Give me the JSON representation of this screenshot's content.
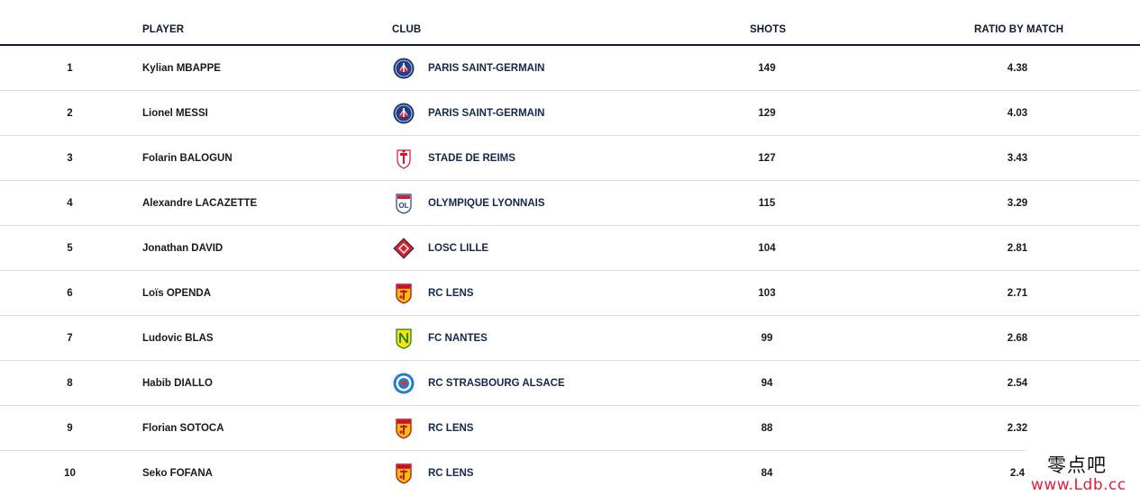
{
  "headers": {
    "player": "PLAYER",
    "club": "CLUB",
    "shots": "SHOTS",
    "ratio": "RATIO BY MATCH"
  },
  "rows": [
    {
      "rank": "1",
      "player": "Kylian MBAPPE",
      "club": "PARIS SAINT-GERMAIN",
      "logo": "psg-crest-icon",
      "shots": "149",
      "ratio": "4.38"
    },
    {
      "rank": "2",
      "player": "Lionel MESSI",
      "club": "PARIS SAINT-GERMAIN",
      "logo": "psg-crest-icon",
      "shots": "129",
      "ratio": "4.03"
    },
    {
      "rank": "3",
      "player": "Folarin BALOGUN",
      "club": "STADE DE REIMS",
      "logo": "reims-crest-icon",
      "shots": "127",
      "ratio": "3.43"
    },
    {
      "rank": "4",
      "player": "Alexandre LACAZETTE",
      "club": "OLYMPIQUE LYONNAIS",
      "logo": "lyon-crest-icon",
      "shots": "115",
      "ratio": "3.29"
    },
    {
      "rank": "5",
      "player": "Jonathan DAVID",
      "club": "LOSC LILLE",
      "logo": "lille-crest-icon",
      "shots": "104",
      "ratio": "2.81"
    },
    {
      "rank": "6",
      "player": "Loïs OPENDA",
      "club": "RC LENS",
      "logo": "lens-crest-icon",
      "shots": "103",
      "ratio": "2.71"
    },
    {
      "rank": "7",
      "player": "Ludovic BLAS",
      "club": "FC NANTES",
      "logo": "nantes-crest-icon",
      "shots": "99",
      "ratio": "2.68"
    },
    {
      "rank": "8",
      "player": "Habib DIALLO",
      "club": "RC STRASBOURG ALSACE",
      "logo": "strasbourg-crest-icon",
      "shots": "94",
      "ratio": "2.54"
    },
    {
      "rank": "9",
      "player": "Florian SOTOCA",
      "club": "RC LENS",
      "logo": "lens-crest-icon",
      "shots": "88",
      "ratio": "2.32"
    },
    {
      "rank": "10",
      "player": "Seko FOFANA",
      "club": "RC LENS",
      "logo": "lens-crest-icon",
      "shots": "84",
      "ratio": "2.4"
    }
  ],
  "watermark": {
    "chinese": "零点吧",
    "url": "www.Ldb.cc"
  },
  "colors": {
    "header_rule": "#0f1a2a",
    "row_divider": "#d9dce1",
    "club_text": "#13284a",
    "watermark_url": "#e0203a"
  }
}
